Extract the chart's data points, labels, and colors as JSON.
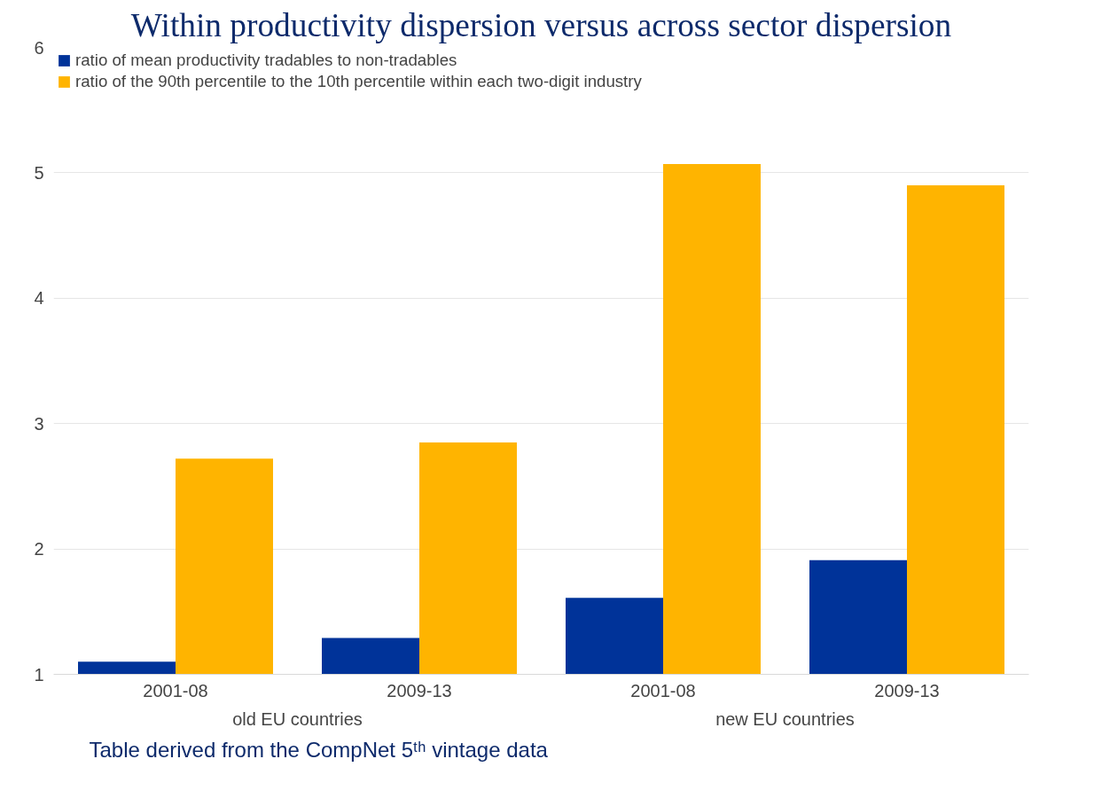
{
  "chart_data": {
    "type": "bar",
    "title": "Within productivity dispersion versus across sector dispersion",
    "categories": [
      "2001-08",
      "2009-13",
      "2001-08",
      "2009-13"
    ],
    "series": [
      {
        "name": "ratio of mean productivity tradables to non-tradables",
        "color": "#003399",
        "values": [
          1.1,
          1.29,
          1.61,
          1.91
        ]
      },
      {
        "name": "ratio of the 90th percentile to the 10th percentile within each two-digit industry",
        "color": "#ffb400",
        "values": [
          2.72,
          2.85,
          5.07,
          4.9
        ]
      }
    ],
    "ylim": [
      1,
      6
    ],
    "yticks": [
      1,
      2,
      3,
      4,
      5,
      6
    ],
    "grid": "y",
    "legend": "top left",
    "annotations": [
      "old EU countries",
      "new EU countries",
      "Table derived from the CompNet 5ᵗʰ vintage data"
    ]
  }
}
